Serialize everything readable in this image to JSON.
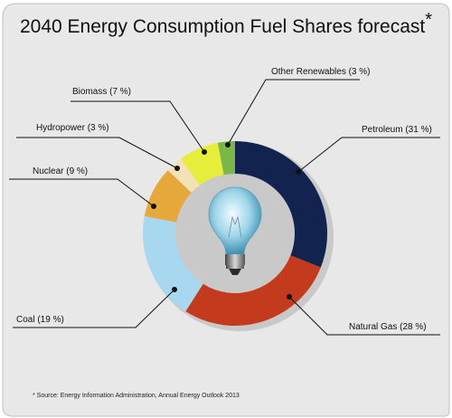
{
  "title": "2040 Energy Consumption Fuel Shares forecast",
  "title_marker": "*",
  "source": "* Source: Energy Information Administration, Annual Energy Outlook 2013",
  "credit": "#48431169",
  "chart_data": {
    "type": "pie",
    "style": "donut",
    "center_icon": "light-bulb-icon",
    "slices": [
      {
        "label": "Petroleum (31 %)",
        "value": 31,
        "color": "#13234f"
      },
      {
        "label": "Natural Gas (28 %)",
        "value": 28,
        "color": "#c43a1c"
      },
      {
        "label": "Coal (19 %)",
        "value": 19,
        "color": "#a7d8f0"
      },
      {
        "label": "Nuclear (9 %)",
        "value": 9,
        "color": "#e6a83a"
      },
      {
        "label": "Hydropower (3 %)",
        "value": 3,
        "color": "#f3e2b6"
      },
      {
        "label": "Biomass (7 %)",
        "value": 7,
        "color": "#e6ee3b"
      },
      {
        "label": "Other Renewables (3 %)",
        "value": 3,
        "color": "#7ab648"
      }
    ]
  }
}
